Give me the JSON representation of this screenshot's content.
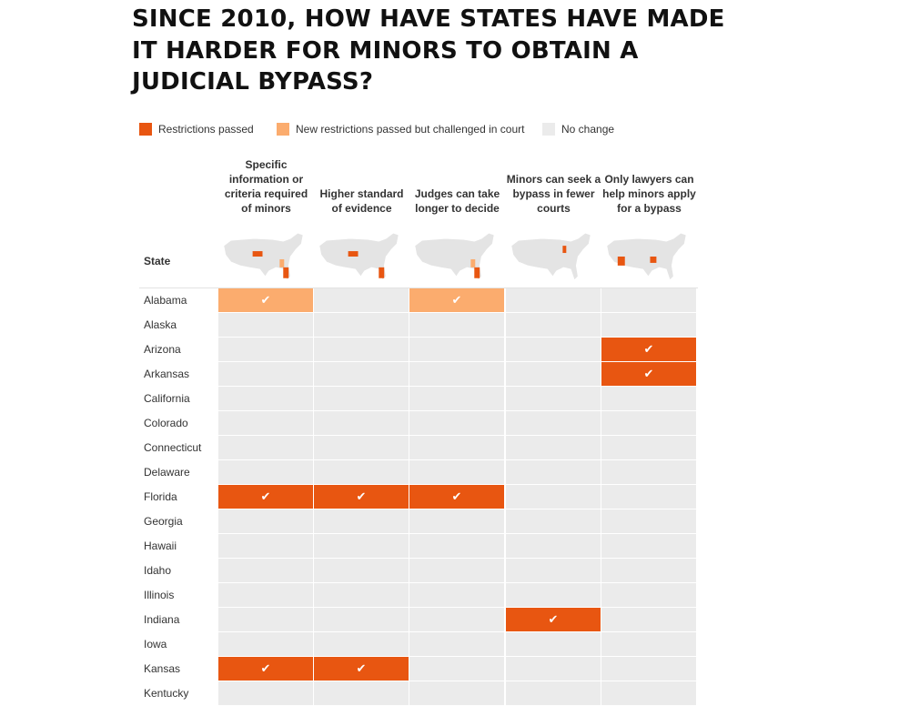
{
  "title": "Since 2010, how have states have made it harder for minors to obtain a judicial bypass?",
  "legend": [
    {
      "label": "Restrictions passed",
      "color": "#e85611"
    },
    {
      "label": "New restrictions passed but challenged in court",
      "color": "#fbac6e"
    },
    {
      "label": "No change",
      "color": "#ebebeb"
    }
  ],
  "state_header": "State",
  "check_glyph": "✔",
  "chart_data": {
    "type": "table",
    "columns": [
      "Specific information or criteria required of minors",
      "Higher standard of evidence",
      "Judges can take longer to decide",
      "Minors can seek a bypass in fewer courts",
      "Only lawyers can help minors apply for a bypass"
    ],
    "status_legend": {
      "passed": "Restrictions passed",
      "challenged": "New restrictions passed but challenged in court",
      "none": "No change"
    },
    "rows": [
      {
        "state": "Alabama",
        "status": [
          "challenged",
          "none",
          "challenged",
          "none",
          "none"
        ]
      },
      {
        "state": "Alaska",
        "status": [
          "none",
          "none",
          "none",
          "none",
          "none"
        ]
      },
      {
        "state": "Arizona",
        "status": [
          "none",
          "none",
          "none",
          "none",
          "passed"
        ]
      },
      {
        "state": "Arkansas",
        "status": [
          "none",
          "none",
          "none",
          "none",
          "passed"
        ]
      },
      {
        "state": "California",
        "status": [
          "none",
          "none",
          "none",
          "none",
          "none"
        ]
      },
      {
        "state": "Colorado",
        "status": [
          "none",
          "none",
          "none",
          "none",
          "none"
        ]
      },
      {
        "state": "Connecticut",
        "status": [
          "none",
          "none",
          "none",
          "none",
          "none"
        ]
      },
      {
        "state": "Delaware",
        "status": [
          "none",
          "none",
          "none",
          "none",
          "none"
        ]
      },
      {
        "state": "Florida",
        "status": [
          "passed",
          "passed",
          "passed",
          "none",
          "none"
        ]
      },
      {
        "state": "Georgia",
        "status": [
          "none",
          "none",
          "none",
          "none",
          "none"
        ]
      },
      {
        "state": "Hawaii",
        "status": [
          "none",
          "none",
          "none",
          "none",
          "none"
        ]
      },
      {
        "state": "Idaho",
        "status": [
          "none",
          "none",
          "none",
          "none",
          "none"
        ]
      },
      {
        "state": "Illinois",
        "status": [
          "none",
          "none",
          "none",
          "none",
          "none"
        ]
      },
      {
        "state": "Indiana",
        "status": [
          "none",
          "none",
          "none",
          "passed",
          "none"
        ]
      },
      {
        "state": "Iowa",
        "status": [
          "none",
          "none",
          "none",
          "none",
          "none"
        ]
      },
      {
        "state": "Kansas",
        "status": [
          "passed",
          "passed",
          "none",
          "none",
          "none"
        ]
      },
      {
        "state": "Kentucky",
        "status": [
          "none",
          "none",
          "none",
          "none",
          "none"
        ]
      }
    ]
  }
}
